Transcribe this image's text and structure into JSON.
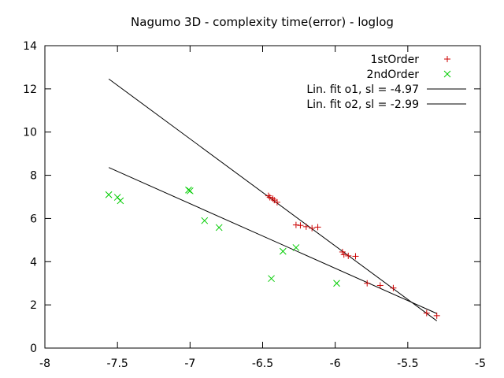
{
  "chart_data": {
    "type": "scatter",
    "title": "Nagumo 3D - complexity time(error) - loglog",
    "xlabel": "",
    "ylabel": "",
    "xlim": [
      -8,
      -5
    ],
    "ylim": [
      0,
      14
    ],
    "x_ticks": [
      -8,
      -7.5,
      -7,
      -6.5,
      -6,
      -5.5,
      -5
    ],
    "y_ticks": [
      0,
      2,
      4,
      6,
      8,
      10,
      12,
      14
    ],
    "grid": false,
    "legend_position": "top-right",
    "series": [
      {
        "name": "1stOrder",
        "marker": "plus",
        "color": "#cc0000",
        "points": [
          [
            -6.46,
            7.05
          ],
          [
            -6.45,
            6.98
          ],
          [
            -6.43,
            6.92
          ],
          [
            -6.42,
            6.85
          ],
          [
            -6.4,
            6.75
          ],
          [
            -6.27,
            5.7
          ],
          [
            -6.24,
            5.68
          ],
          [
            -6.2,
            5.62
          ],
          [
            -6.16,
            5.55
          ],
          [
            -6.12,
            5.6
          ],
          [
            -5.95,
            4.45
          ],
          [
            -5.94,
            4.33
          ],
          [
            -5.91,
            4.27
          ],
          [
            -5.86,
            4.25
          ],
          [
            -5.78,
            3.0
          ],
          [
            -5.69,
            2.9
          ],
          [
            -5.6,
            2.78
          ],
          [
            -5.37,
            1.62
          ],
          [
            -5.3,
            1.5
          ]
        ]
      },
      {
        "name": "2ndOrder",
        "marker": "x",
        "color": "#00cc00",
        "points": [
          [
            -7.56,
            7.1
          ],
          [
            -7.5,
            6.98
          ],
          [
            -7.48,
            6.82
          ],
          [
            -7.01,
            7.32
          ],
          [
            -7.0,
            7.28
          ],
          [
            -6.9,
            5.9
          ],
          [
            -6.8,
            5.58
          ],
          [
            -6.44,
            3.22
          ],
          [
            -6.36,
            4.48
          ],
          [
            -6.27,
            4.65
          ],
          [
            -5.99,
            3.0
          ]
        ]
      },
      {
        "name": "Lin. fit o1, sl = -4.97",
        "type": "line",
        "color": "#000000",
        "points": [
          [
            -7.56,
            12.46
          ],
          [
            -5.3,
            1.26
          ]
        ]
      },
      {
        "name": "Lin. fit o2, sl = -2.99",
        "type": "line",
        "color": "#000000",
        "points": [
          [
            -7.56,
            8.36
          ],
          [
            -5.3,
            1.6
          ]
        ]
      }
    ]
  }
}
